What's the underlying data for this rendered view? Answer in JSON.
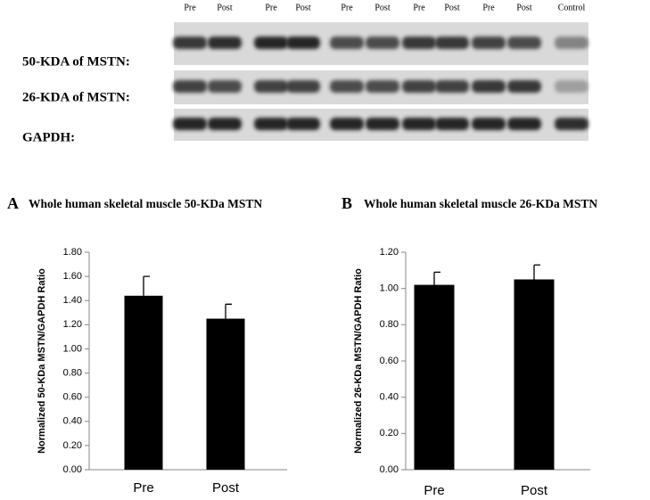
{
  "blot": {
    "lanes": [
      "Pre",
      "Post",
      "Pre",
      "Post",
      "Pre",
      "Post",
      "Pre",
      "Post",
      "Pre",
      "Post",
      "Control"
    ],
    "rows": [
      "50-KDA of MSTN:",
      "26-KDA of MSTN:",
      "GAPDH:"
    ]
  },
  "chart_data": [
    {
      "type": "bar",
      "panel": "A",
      "title": "Whole human skeletal muscle 50-KDa MSTN",
      "y_label": "Normalized 50-KDa MSTN/GAPDH Ratio",
      "categories": [
        "Pre",
        "Post"
      ],
      "values": [
        1.44,
        1.25
      ],
      "errors": [
        0.16,
        0.12
      ],
      "color": "#000000",
      "ylim": [
        0,
        1.8
      ],
      "yticks": [
        {
          "value": 0,
          "label": "0.00"
        },
        {
          "value": 0.2,
          "label": "0.20"
        },
        {
          "value": 0.4,
          "label": "0.40"
        },
        {
          "value": 0.6,
          "label": "0.60"
        },
        {
          "value": 0.8,
          "label": "0.80"
        },
        {
          "value": 1.0,
          "label": "1.00"
        },
        {
          "value": 1.2,
          "label": "1.20"
        },
        {
          "value": 1.4,
          "label": "1.40"
        },
        {
          "value": 1.6,
          "label": "1.60"
        },
        {
          "value": 1.8,
          "label": "1.80"
        }
      ],
      "grid": false
    },
    {
      "type": "bar",
      "panel": "B",
      "title": "Whole human skeletal muscle 26-KDa MSTN",
      "y_label": "Normalized 26-KDa MSTN/GAPDH Ratio",
      "categories": [
        "Pre",
        "Post"
      ],
      "values": [
        1.02,
        1.05
      ],
      "errors": [
        0.07,
        0.08
      ],
      "color": "#000000",
      "ylim": [
        0,
        1.2
      ],
      "yticks": [
        {
          "value": 0,
          "label": "0.00"
        },
        {
          "value": 0.2,
          "label": "0.20"
        },
        {
          "value": 0.4,
          "label": "0.40"
        },
        {
          "value": 0.6,
          "label": "0.60"
        },
        {
          "value": 0.8,
          "label": "0.80"
        },
        {
          "value": 1.0,
          "label": "1.00"
        },
        {
          "value": 1.2,
          "label": "1.20"
        }
      ],
      "grid": false
    }
  ]
}
